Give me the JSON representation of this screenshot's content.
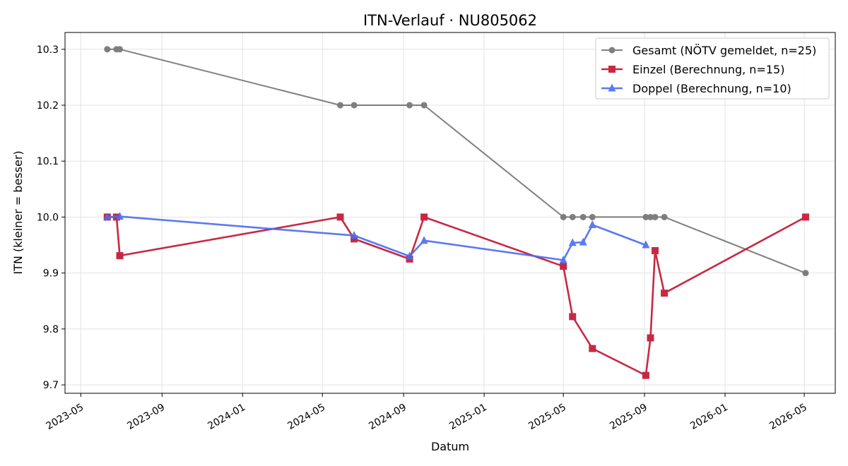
{
  "chart_data": {
    "type": "line",
    "title": "ITN-Verlauf · NU805062",
    "xlabel": "Datum",
    "ylabel": "ITN  (kleiner = besser)",
    "xlim": [
      "2023-04-07",
      "2026-06-17"
    ],
    "ylim": [
      9.685,
      10.33
    ],
    "x_ticks": [
      "2023-05",
      "2023-09",
      "2024-01",
      "2024-05",
      "2024-09",
      "2025-01",
      "2025-05",
      "2025-09",
      "2026-01",
      "2026-05"
    ],
    "y_ticks": [
      "9.7",
      "9.8",
      "9.9",
      "10.0",
      "10.1",
      "10.2",
      "10.3"
    ],
    "grid": true,
    "legend": "top-right",
    "series": [
      {
        "name": "Gesamt (NÖTV gemeldet, n=25)",
        "color": "#555555",
        "marker": "circle",
        "points": [
          {
            "x": "2023-06-10",
            "y": 10.3
          },
          {
            "x": "2023-06-24",
            "y": 10.3
          },
          {
            "x": "2023-06-29",
            "y": 10.3
          },
          {
            "x": "2024-05-28",
            "y": 10.2
          },
          {
            "x": "2024-06-18",
            "y": 10.2
          },
          {
            "x": "2024-09-10",
            "y": 10.2
          },
          {
            "x": "2024-10-02",
            "y": 10.2
          },
          {
            "x": "2025-05-01",
            "y": 10.0
          },
          {
            "x": "2025-05-15",
            "y": 10.0
          },
          {
            "x": "2025-05-31",
            "y": 10.0
          },
          {
            "x": "2025-06-14",
            "y": 10.0
          },
          {
            "x": "2025-09-03",
            "y": 10.0
          },
          {
            "x": "2025-09-10",
            "y": 10.0
          },
          {
            "x": "2025-09-17",
            "y": 10.0
          },
          {
            "x": "2025-10-01",
            "y": 10.0
          },
          {
            "x": "2026-05-03",
            "y": 9.9
          }
        ]
      },
      {
        "name": "Einzel (Berechnung, n=15)",
        "color": "#c41e3a",
        "marker": "square",
        "points": [
          {
            "x": "2023-06-10",
            "y": 10.0
          },
          {
            "x": "2023-06-24",
            "y": 10.0
          },
          {
            "x": "2023-06-29",
            "y": 9.931
          },
          {
            "x": "2024-05-28",
            "y": 10.0
          },
          {
            "x": "2024-06-18",
            "y": 9.961
          },
          {
            "x": "2024-09-10",
            "y": 9.925
          },
          {
            "x": "2024-10-02",
            "y": 10.0
          },
          {
            "x": "2025-05-01",
            "y": 9.912
          },
          {
            "x": "2025-05-15",
            "y": 9.822
          },
          {
            "x": "2025-06-14",
            "y": 9.765
          },
          {
            "x": "2025-09-03",
            "y": 9.717
          },
          {
            "x": "2025-09-10",
            "y": 9.784
          },
          {
            "x": "2025-09-17",
            "y": 9.94
          },
          {
            "x": "2025-10-01",
            "y": 9.864
          },
          {
            "x": "2026-05-03",
            "y": 10.0
          }
        ]
      },
      {
        "name": "Doppel (Berechnung, n=10)",
        "color": "#4a6cf0",
        "marker": "triangle",
        "points": [
          {
            "x": "2023-06-10",
            "y": 10.0
          },
          {
            "x": "2023-06-29",
            "y": 10.001
          },
          {
            "x": "2024-06-18",
            "y": 9.967
          },
          {
            "x": "2024-09-10",
            "y": 9.93
          },
          {
            "x": "2024-10-02",
            "y": 9.958
          },
          {
            "x": "2025-05-01",
            "y": 9.923
          },
          {
            "x": "2025-05-15",
            "y": 9.954
          },
          {
            "x": "2025-05-31",
            "y": 9.955
          },
          {
            "x": "2025-06-14",
            "y": 9.986
          },
          {
            "x": "2025-09-03",
            "y": 9.95
          }
        ]
      }
    ]
  }
}
